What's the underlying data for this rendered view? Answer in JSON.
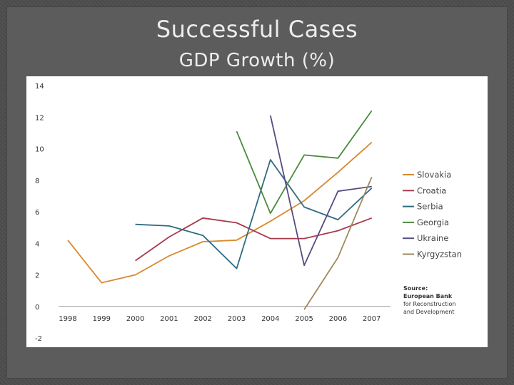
{
  "slide": {
    "title": "Successful Cases",
    "subtitle": "GDP Growth (%)"
  },
  "chart_data": {
    "type": "line",
    "title": "",
    "xlabel": "",
    "ylabel": "",
    "x": [
      "1998",
      "1999",
      "2000",
      "2001",
      "2002",
      "2003",
      "2004",
      "2005",
      "2006",
      "2007"
    ],
    "ylim": [
      -2,
      14
    ],
    "yticks": [
      "-2",
      "0",
      "2",
      "4",
      "6",
      "8",
      "10",
      "12",
      "14"
    ],
    "grid": false,
    "legend_position": "right",
    "series": [
      {
        "name": "Slovakia",
        "color": "#d9892e",
        "values": [
          4.2,
          1.5,
          2.0,
          3.2,
          4.1,
          4.2,
          5.4,
          6.7,
          8.5,
          10.4
        ]
      },
      {
        "name": "Croatia",
        "color": "#a83a4c",
        "values": [
          null,
          null,
          2.9,
          4.4,
          5.6,
          5.3,
          4.3,
          4.3,
          4.8,
          5.6
        ]
      },
      {
        "name": "Serbia",
        "color": "#2f6b80",
        "values": [
          null,
          null,
          5.2,
          5.1,
          4.5,
          2.4,
          9.3,
          6.3,
          5.5,
          7.5
        ]
      },
      {
        "name": "Georgia",
        "color": "#4a8b3c",
        "values": [
          null,
          null,
          null,
          null,
          null,
          11.1,
          5.9,
          9.6,
          9.4,
          12.4
        ]
      },
      {
        "name": "Ukraine",
        "color": "#5a4a82",
        "values": [
          null,
          null,
          null,
          null,
          null,
          null,
          12.1,
          2.6,
          7.3,
          7.6
        ]
      },
      {
        "name": "Kyrgyzstan",
        "color": "#a08a5a",
        "values": [
          null,
          null,
          null,
          null,
          null,
          null,
          null,
          -0.2,
          3.1,
          8.2
        ]
      }
    ],
    "source_note": [
      "Source:",
      "European Bank",
      "for Reconstruction",
      "and Development"
    ]
  }
}
